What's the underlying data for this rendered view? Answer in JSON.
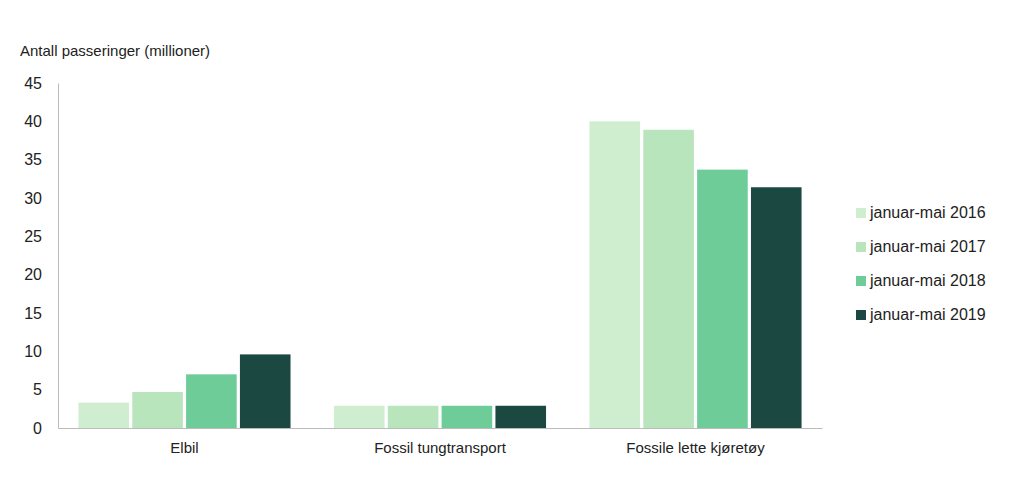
{
  "chart_data": {
    "type": "bar",
    "y_label": "Antall passeringer (millioner)",
    "categories": [
      "Elbil",
      "Fossil tungtransport",
      "Fossile lette kjøretøy"
    ],
    "series": [
      {
        "name": "januar-mai 2016",
        "color": "#cfeecf",
        "values": [
          3.3,
          2.9,
          40.0
        ]
      },
      {
        "name": "januar-mai 2017",
        "color": "#b9e5bc",
        "values": [
          4.7,
          2.9,
          38.9
        ]
      },
      {
        "name": "januar-mai 2018",
        "color": "#6dcc98",
        "values": [
          7.0,
          2.9,
          33.7
        ]
      },
      {
        "name": "januar-mai 2019",
        "color": "#1b4840",
        "values": [
          9.6,
          2.9,
          31.4
        ]
      }
    ],
    "ylim": [
      0,
      45
    ],
    "yticks": [
      0,
      5,
      10,
      15,
      20,
      25,
      30,
      35,
      40,
      45
    ],
    "grid": false,
    "legend": "right"
  }
}
